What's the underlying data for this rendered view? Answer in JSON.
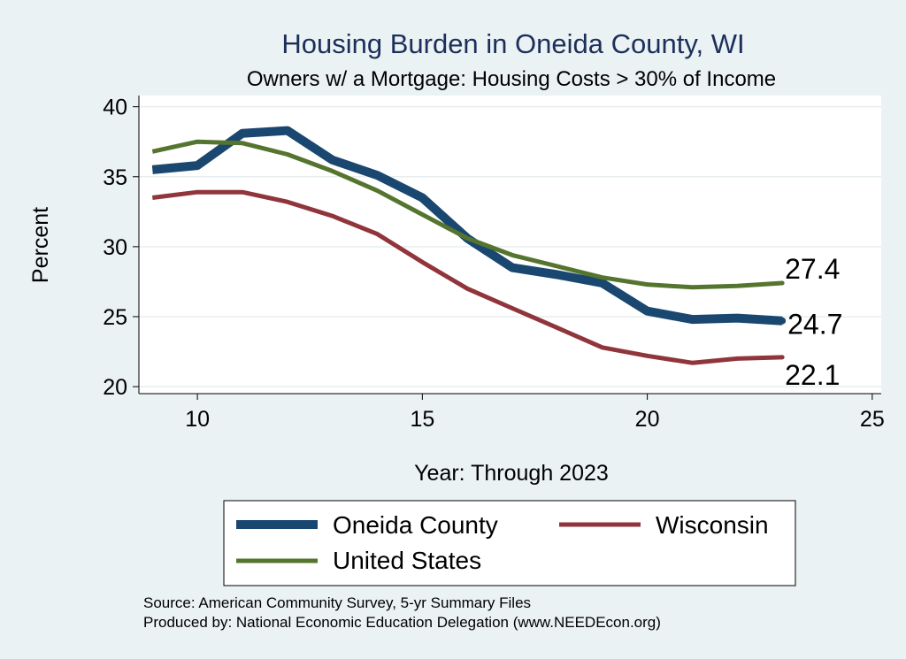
{
  "chart_data": {
    "type": "line",
    "title": "Housing Burden in Oneida County, WI",
    "subtitle": "Owners w/ a Mortgage: Housing Costs > 30% of Income",
    "xlabel": "Year: Through 2023",
    "ylabel": "Percent",
    "xlim": [
      8.7,
      25.2
    ],
    "ylim": [
      19.5,
      40.8
    ],
    "xticks": [
      10,
      15,
      20,
      25
    ],
    "yticks": [
      20,
      25,
      30,
      35,
      40
    ],
    "x": [
      9,
      10,
      11,
      12,
      13,
      14,
      15,
      16,
      17,
      18,
      19,
      20,
      21,
      22,
      23
    ],
    "series": [
      {
        "name": "Oneida County",
        "color": "#1a476f",
        "values": [
          35.5,
          35.8,
          38.1,
          38.3,
          36.2,
          35.1,
          33.5,
          30.6,
          28.5,
          28.0,
          27.4,
          25.4,
          24.8,
          24.9,
          24.7
        ],
        "end_label": "24.7"
      },
      {
        "name": "Wisconsin",
        "color": "#90353b",
        "values": [
          33.5,
          33.9,
          33.9,
          33.2,
          32.2,
          30.9,
          28.9,
          27.0,
          25.6,
          24.2,
          22.8,
          22.2,
          21.7,
          22.0,
          22.1
        ],
        "end_label": "22.1"
      },
      {
        "name": "United States",
        "color": "#55752f",
        "values": [
          36.8,
          37.5,
          37.4,
          36.6,
          35.4,
          34.0,
          32.3,
          30.6,
          29.4,
          28.6,
          27.8,
          27.3,
          27.1,
          27.2,
          27.4
        ],
        "end_label": "27.4"
      }
    ],
    "grid": true,
    "legend": "bottom"
  },
  "notes": {
    "source": "Source: American Community Survey, 5-yr Summary Files",
    "produced": "Produced by: National Economic Education Delegation (www.NEEDEcon.org)"
  }
}
